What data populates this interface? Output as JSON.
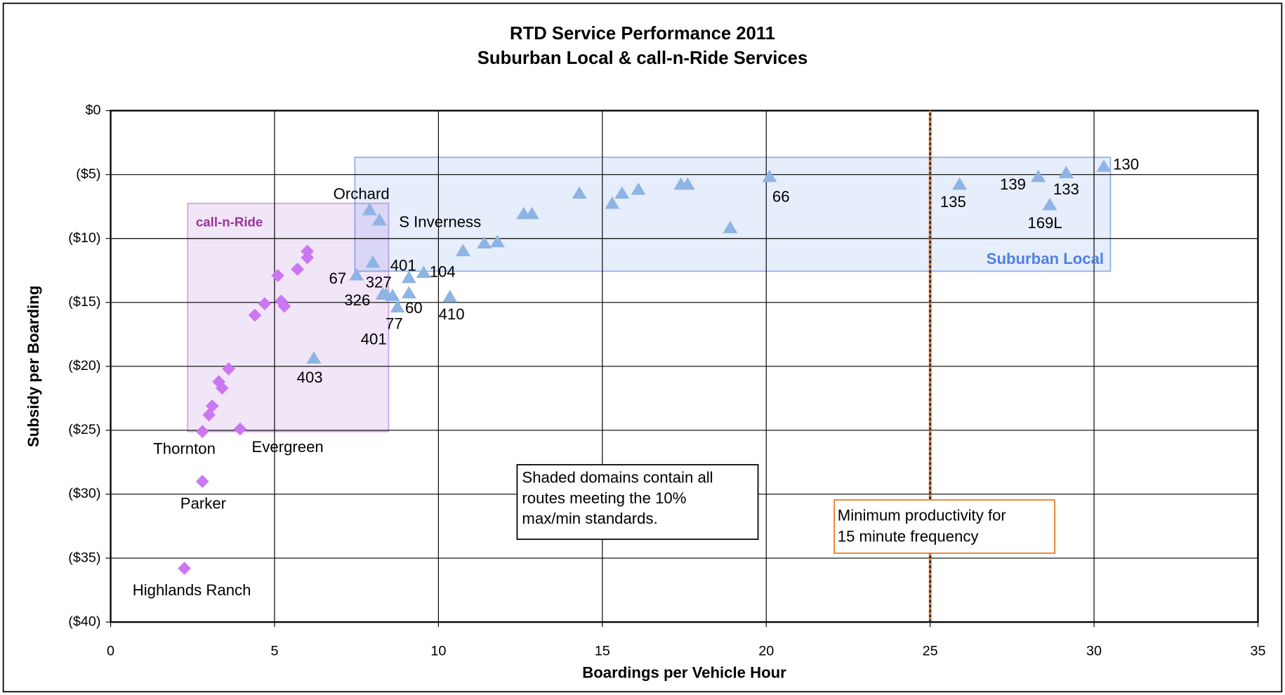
{
  "chart_data": {
    "type": "scatter",
    "title": "RTD Service Performance 2011",
    "subtitle": "Suburban Local & call-n-Ride Services",
    "x_label": "Boardings per Vehicle Hour",
    "y_label": "Subsidy per Boarding",
    "xlim": [
      0,
      35
    ],
    "xticks": [
      0,
      5,
      10,
      15,
      20,
      25,
      30,
      35
    ],
    "ylim": [
      -40,
      0
    ],
    "yticks": [
      {
        "value": 0,
        "label": "$0"
      },
      {
        "value": -5,
        "label": "($5)"
      },
      {
        "value": -10,
        "label": "($10)"
      },
      {
        "value": -15,
        "label": "($15)"
      },
      {
        "value": -20,
        "label": "($20)"
      },
      {
        "value": -25,
        "label": "($25)"
      },
      {
        "value": -30,
        "label": "($30)"
      },
      {
        "value": -35,
        "label": "($35)"
      },
      {
        "value": -40,
        "label": "($40)"
      }
    ],
    "grid": true,
    "series": [
      {
        "color": "#cc77f2",
        "marker": "diamond",
        "x": [
          6.0,
          6.0,
          5.1,
          5.7,
          4.7,
          5.2,
          5.3,
          4.4,
          3.6,
          3.3,
          3.4,
          3.1,
          3.0,
          3.95,
          2.8,
          2.8,
          2.25
        ],
        "y": [
          -11.0,
          -11.5,
          -12.9,
          -12.4,
          -15.1,
          -14.9,
          -15.3,
          -16.0,
          -20.2,
          -21.2,
          -21.7,
          -23.1,
          -23.8,
          -24.9,
          -25.1,
          -29.0,
          -35.8
        ],
        "labels": [
          null,
          null,
          null,
          null,
          null,
          null,
          null,
          null,
          null,
          null,
          null,
          null,
          null,
          "Evergreen",
          "Thornton",
          "Parker",
          "Highlands Ranch"
        ]
      },
      {
        "color": "#8eb4e3",
        "marker": "triangle",
        "x": [
          7.9,
          8.2,
          7.5,
          8.0,
          9.1,
          9.55,
          8.3,
          8.4,
          8.6,
          8.75,
          9.1,
          10.35,
          6.2,
          10.75,
          11.4,
          11.8,
          12.6,
          12.85,
          14.3,
          15.3,
          15.6,
          16.1,
          17.4,
          17.6,
          18.9,
          20.1,
          25.9,
          28.3,
          29.15,
          28.65,
          30.3
        ],
        "y": [
          -7.8,
          -8.6,
          -12.9,
          -11.9,
          -13.1,
          -12.7,
          -14.4,
          -14.4,
          -14.5,
          -15.4,
          -14.3,
          -14.6,
          -19.4,
          -11.0,
          -10.4,
          -10.3,
          -8.1,
          -8.1,
          -6.5,
          -7.3,
          -6.5,
          -6.2,
          -5.8,
          -5.8,
          -9.2,
          -5.2,
          -5.8,
          -5.2,
          -4.9,
          -7.4,
          -4.4
        ],
        "labels": [
          "Orchard",
          "S Inverness",
          "67",
          "327",
          "401",
          "104",
          "326",
          null,
          "401",
          "77",
          "60",
          "410",
          "403",
          null,
          null,
          null,
          null,
          null,
          null,
          null,
          null,
          null,
          null,
          null,
          null,
          "66",
          "135",
          "139",
          "133",
          "169L",
          "130"
        ]
      }
    ],
    "domains": [
      {
        "name": "call-n-Ride",
        "xlim": [
          2.35,
          8.48
        ],
        "ylim": [
          -25.1,
          -7.25
        ],
        "color": "#b070d8"
      },
      {
        "name": "Suburban Local",
        "xlim": [
          7.45,
          30.5
        ],
        "ylim": [
          -12.56,
          -3.65
        ],
        "color": "#4f81e0"
      }
    ],
    "note": [
      "Shaded domains contain all",
      "routes meeting the 10%",
      "max/min standards."
    ],
    "reference_line": {
      "x": 25,
      "label": [
        "Minimum productivity for",
        "15 minute frequency"
      ],
      "color": "#ee7722"
    }
  }
}
